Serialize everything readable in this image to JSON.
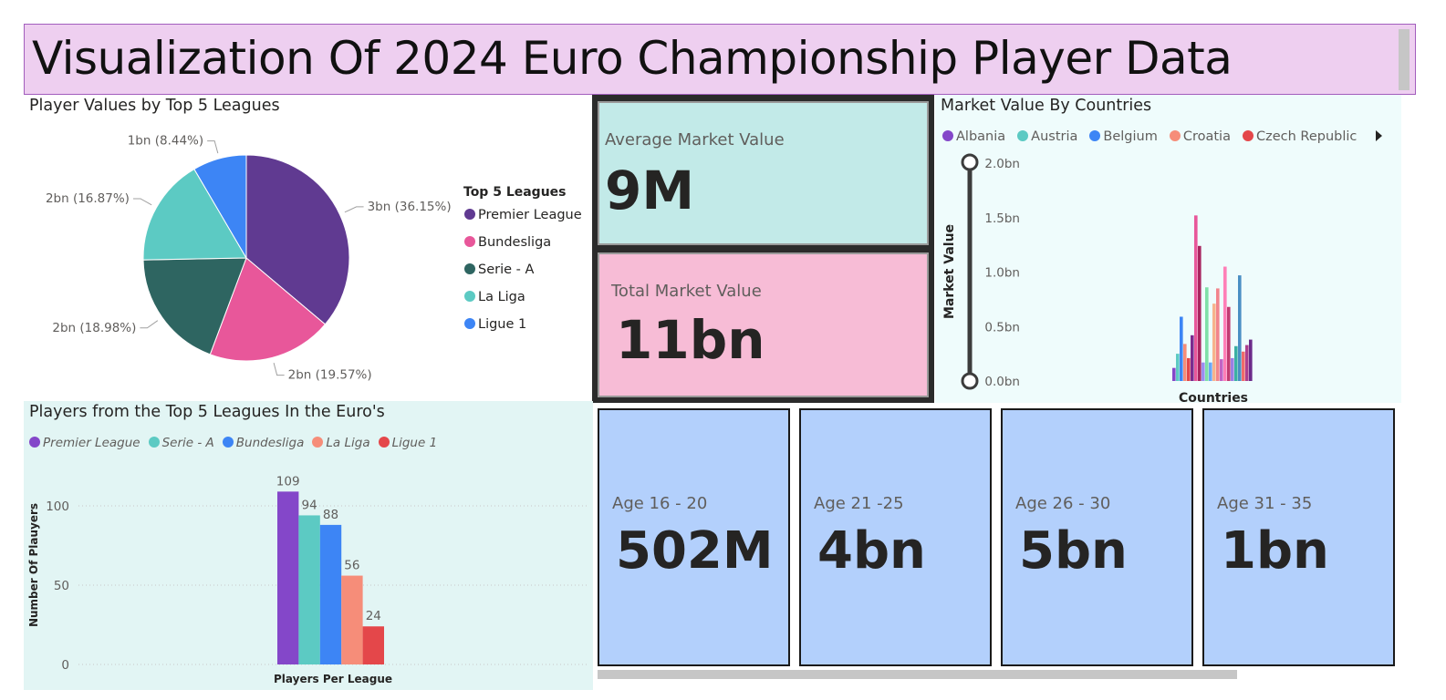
{
  "title": "Visualization Of 2024 Euro Championship Player Data",
  "pie": {
    "title": "Player Values by Top 5 Leagues",
    "legend_title": "Top 5 Leagues"
  },
  "kpi": {
    "average_label": "Average Market Value",
    "average_value": "9M",
    "total_label": "Total Market Value",
    "total_value": "11bn"
  },
  "countries": {
    "title": "Market Value By Countries",
    "legend_items": [
      {
        "name": "Albania",
        "color": "#8447c9"
      },
      {
        "name": "Austria",
        "color": "#5ccac3"
      },
      {
        "name": "Belgium",
        "color": "#3d85f5"
      },
      {
        "name": "Croatia",
        "color": "#f68d79"
      },
      {
        "name": "Czech Republic",
        "color": "#e4474a"
      }
    ],
    "legend_more_icon": "triangle-right-icon"
  },
  "players": {
    "title": "Players from the Top 5 Leagues In the Euro's"
  },
  "age_cards": [
    {
      "label": "Age 16 - 20",
      "value": "502M"
    },
    {
      "label": "Age 21 -25",
      "value": "4bn"
    },
    {
      "label": "Age 26 - 30",
      "value": "5bn"
    },
    {
      "label": "Age 31 - 35",
      "value": "1bn"
    }
  ],
  "chart_data": [
    {
      "type": "pie",
      "title": "Player Values by Top 5 Leagues",
      "legend_title": "Top 5 Leagues",
      "legend_position": "right",
      "slices": [
        {
          "name": "Premier League",
          "value": 3,
          "percent": 36.15,
          "label": "3bn (36.15%)",
          "color": "#603a91"
        },
        {
          "name": "Bundesliga",
          "value": 2,
          "percent": 19.57,
          "label": "2bn (19.57%)",
          "color": "#e8579a"
        },
        {
          "name": "Serie - A",
          "value": 2,
          "percent": 18.98,
          "label": "2bn (18.98%)",
          "color": "#2e6561"
        },
        {
          "name": "La Liga",
          "value": 2,
          "percent": 16.87,
          "label": "2bn (16.87%)",
          "color": "#5ccac3"
        },
        {
          "name": "Ligue 1",
          "value": 1,
          "percent": 8.44,
          "label": "1bn (8.44%)",
          "color": "#3d85f5"
        }
      ]
    },
    {
      "type": "bar",
      "title": "Market Value By Countries",
      "xlabel": "Countries",
      "ylabel": "Market Value",
      "yticks": [
        "0.0bn",
        "0.5bn",
        "1.0bn",
        "1.5bn",
        "2.0bn"
      ],
      "ylim": [
        0,
        2.0
      ],
      "legend_position": "top",
      "series": [
        {
          "value": 0.12,
          "color": "#8447c9"
        },
        {
          "value": 0.25,
          "color": "#5ccac3"
        },
        {
          "value": 0.59,
          "color": "#3d85f5"
        },
        {
          "value": 0.34,
          "color": "#f68d79"
        },
        {
          "value": 0.21,
          "color": "#e4474a"
        },
        {
          "value": 0.42,
          "color": "#7a2b8f"
        },
        {
          "value": 1.52,
          "color": "#e8579a"
        },
        {
          "value": 1.24,
          "color": "#a8245f"
        },
        {
          "value": 0.17,
          "color": "#9b8ef0"
        },
        {
          "value": 0.86,
          "color": "#7fe0a8"
        },
        {
          "value": 0.17,
          "color": "#6aa7f7"
        },
        {
          "value": 0.71,
          "color": "#f7b38c"
        },
        {
          "value": 0.85,
          "color": "#f2848c"
        },
        {
          "value": 0.2,
          "color": "#c263c4"
        },
        {
          "value": 1.05,
          "color": "#ff7fb7"
        },
        {
          "value": 0.68,
          "color": "#c23b72"
        },
        {
          "value": 0.21,
          "color": "#9b7fe3"
        },
        {
          "value": 0.32,
          "color": "#3ab0a3"
        },
        {
          "value": 0.97,
          "color": "#4a8fc4"
        },
        {
          "value": 0.27,
          "color": "#f06a6a"
        },
        {
          "value": 0.33,
          "color": "#ad3f8e"
        },
        {
          "value": 0.38,
          "color": "#6b2a8a"
        }
      ]
    },
    {
      "type": "bar",
      "title": "Players from the Top 5 Leagues In the Euro's",
      "xlabel": "Players Per League",
      "ylabel": "Number Of Plauyers",
      "yticks": [
        0,
        50,
        100
      ],
      "ylim": [
        0,
        120
      ],
      "legend_position": "top-left",
      "grid": true,
      "series": [
        {
          "name": "Premier League",
          "value": 109,
          "color": "#8447c9"
        },
        {
          "name": "Serie - A",
          "value": 94,
          "color": "#5ccac3"
        },
        {
          "name": "Bundesliga",
          "value": 88,
          "color": "#3d85f5"
        },
        {
          "name": "La Liga",
          "value": 56,
          "color": "#f68d79"
        },
        {
          "name": "Ligue 1",
          "value": 24,
          "color": "#e4474a"
        }
      ]
    }
  ]
}
